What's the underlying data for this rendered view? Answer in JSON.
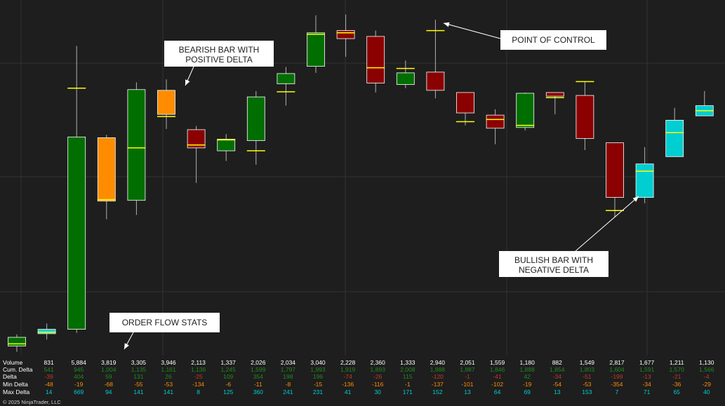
{
  "chart_data": {
    "type": "candlestick",
    "candles": [
      {
        "open": 1,
        "close": 13,
        "high": 17,
        "low": -7,
        "poc": 4,
        "color": "green"
      },
      {
        "open": 18,
        "close": 24,
        "high": 32,
        "low": 10,
        "poc": 20,
        "color": "cyan"
      },
      {
        "open": 24,
        "close": 288,
        "high": 413,
        "low": 19,
        "poc": 355,
        "color": "green"
      },
      {
        "open": 287,
        "close": 200,
        "high": 291,
        "low": 175,
        "poc": 202,
        "color": "orange"
      },
      {
        "open": 201,
        "close": 353,
        "high": 363,
        "low": 181,
        "poc": 273,
        "color": "green"
      },
      {
        "open": 352,
        "close": 319,
        "high": 367,
        "low": 299,
        "poc": 316,
        "color": "orange"
      },
      {
        "open": 298,
        "close": 273,
        "high": 303,
        "low": 225,
        "poc": 277,
        "color": "red"
      },
      {
        "open": 269,
        "close": 285,
        "high": 292,
        "low": 255,
        "poc": 284,
        "color": "green"
      },
      {
        "open": 283,
        "close": 343,
        "high": 351,
        "low": 250,
        "poc": 269,
        "color": "green"
      },
      {
        "open": 361,
        "close": 375,
        "high": 384,
        "low": 331,
        "poc": 350,
        "color": "green"
      },
      {
        "open": 385,
        "close": 431,
        "high": 455,
        "low": 376,
        "poc": 429,
        "color": "green"
      },
      {
        "open": 434,
        "close": 423,
        "high": 456,
        "low": 398,
        "poc": 431,
        "color": "red"
      },
      {
        "open": 426,
        "close": 362,
        "high": 434,
        "low": 349,
        "poc": 383,
        "color": "red"
      },
      {
        "open": 360,
        "close": 376,
        "high": 393,
        "low": 355,
        "poc": 382,
        "color": "green"
      },
      {
        "open": 377,
        "close": 352,
        "high": 449,
        "low": 341,
        "poc": 434,
        "color": "red"
      },
      {
        "open": 349,
        "close": 321,
        "high": 349,
        "low": 304,
        "poc": 309,
        "color": "red"
      },
      {
        "open": 318,
        "close": 300,
        "high": 326,
        "low": 278,
        "poc": 312,
        "color": "red"
      },
      {
        "open": 301,
        "close": 348,
        "high": 349,
        "low": 297,
        "poc": 304,
        "color": "green"
      },
      {
        "open": 349,
        "close": 344,
        "high": 349,
        "low": 319,
        "poc": 342,
        "color": "red"
      },
      {
        "open": 345,
        "close": 286,
        "high": 364,
        "low": 270,
        "poc": 364,
        "color": "red"
      },
      {
        "open": 280,
        "close": 205,
        "high": 280,
        "low": 178,
        "poc": 187,
        "color": "red"
      },
      {
        "open": 205,
        "close": 251,
        "high": 274,
        "low": 197,
        "poc": 241,
        "color": "cyan"
      },
      {
        "open": 261,
        "close": 311,
        "high": 328,
        "low": 261,
        "poc": 294,
        "color": "cyan"
      },
      {
        "open": 317,
        "close": 331,
        "high": 351,
        "low": 317,
        "poc": 324,
        "color": "cyan"
      }
    ],
    "y_range": [
      -12,
      476
    ],
    "grid": true,
    "colors": {
      "background": "#1e1e1e",
      "grid": "#333333",
      "green": "#006e00",
      "red": "#8b0000",
      "orange": "#ff8c00",
      "cyan": "#00ced1",
      "poc": "#ffff00",
      "wick": "#b0b0b0",
      "outline": "#ffffff"
    },
    "stats": {
      "labels": [
        "Volume",
        "Cum. Delta",
        "Delta",
        "Min Delta",
        "Max Delta"
      ],
      "rows": [
        [
          "831",
          "5,884",
          "3,819",
          "3,305",
          "3,946",
          "2,113",
          "1,337",
          "2,026",
          "2,034",
          "3,040",
          "2,228",
          "2,360",
          "1,333",
          "2,940",
          "2,051",
          "1,559",
          "1,180",
          "882",
          "1,549",
          "2,817",
          "1,677",
          "1,211",
          "1,130"
        ],
        [
          "541",
          "945",
          "1,004",
          "1,135",
          "1,161",
          "1,136",
          "1,245",
          "1,599",
          "1,797",
          "1,993",
          "1,919",
          "1,893",
          "2,008",
          "1,888",
          "1,887",
          "1,846",
          "1,888",
          "1,854",
          "1,803",
          "1,604",
          "1,591",
          "1,570",
          "1,566"
        ],
        [
          "-39",
          "404",
          "59",
          "131",
          "26",
          "-25",
          "109",
          "354",
          "198",
          "196",
          "-74",
          "-26",
          "115",
          "-120",
          "-1",
          "-41",
          "42",
          "-34",
          "-51",
          "-199",
          "-13",
          "-21",
          "-4"
        ],
        [
          "-48",
          "-19",
          "-68",
          "-55",
          "-53",
          "-134",
          "-6",
          "-11",
          "-8",
          "-15",
          "-136",
          "-116",
          "-1",
          "-137",
          "-101",
          "-102",
          "-19",
          "-54",
          "-53",
          "-354",
          "-34",
          "-36",
          "-29"
        ],
        [
          "14",
          "669",
          "94",
          "141",
          "141",
          "8",
          "125",
          "360",
          "241",
          "231",
          "41",
          "30",
          "171",
          "152",
          "13",
          "64",
          "69",
          "13",
          "153",
          "7",
          "71",
          "65",
          "40"
        ]
      ],
      "row_colors": [
        "#ffffff",
        "#1f8a1f",
        "#mixed",
        "#ff8c00",
        "#00ced1"
      ]
    }
  },
  "annotations": {
    "bearish": "BEARISH BAR WITH POSITIVE DELTA",
    "poc": "POINT OF CONTROL",
    "bullish": "BULLISH BAR WITH NEGATIVE DELTA",
    "stats": "ORDER FLOW STATS"
  },
  "footer": {
    "copyright": "© 2025 NinjaTrader, LLC"
  }
}
